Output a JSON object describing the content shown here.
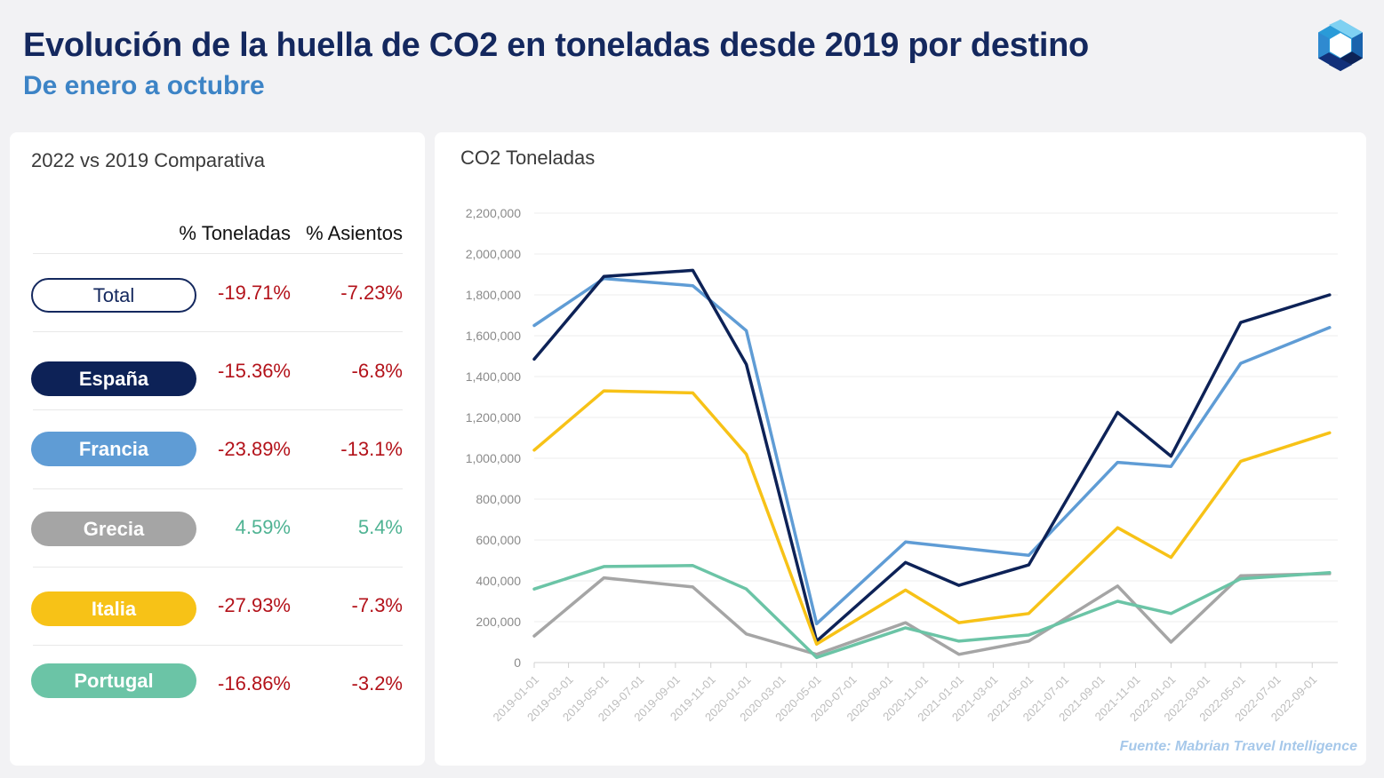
{
  "header": {
    "title": "Evolución de la huella de CO2 en toneladas desde 2019 por destino",
    "subtitle": "De enero a octubre",
    "logo_icon": "hexagon-logo-icon"
  },
  "comparison": {
    "title": "2022 vs 2019 Comparativa",
    "col_tons": "% Toneladas",
    "col_seats": "% Asientos",
    "rows": [
      {
        "label": "Total",
        "tons": "-19.71%",
        "seats": "-7.23%",
        "color": "#ffffff",
        "outline": true
      },
      {
        "label": "España",
        "tons": "-15.36%",
        "seats": "-6.8%",
        "color": "#0d2257"
      },
      {
        "label": "Francia",
        "tons": "-23.89%",
        "seats": "-13.1%",
        "color": "#5f9cd5"
      },
      {
        "label": "Grecia",
        "tons": "4.59%",
        "seats": "5.4%",
        "color": "#a5a5a5"
      },
      {
        "label": "Italia",
        "tons": "-27.93%",
        "seats": "-7.3%",
        "color": "#f7c217"
      },
      {
        "label": "Portugal",
        "tons": "-16.86%",
        "seats": "-3.2%",
        "color": "#6bc4a6"
      }
    ]
  },
  "chart_data": {
    "type": "line",
    "title": "CO2 Toneladas",
    "source": "Fuente: Mabrian Travel Intelligence",
    "ylim": [
      0,
      2200000
    ],
    "yticks": [
      0,
      200000,
      400000,
      600000,
      800000,
      1000000,
      1200000,
      1400000,
      1600000,
      1800000,
      2000000,
      2200000
    ],
    "ytick_labels": [
      "0",
      "200,000",
      "400,000",
      "600,000",
      "800,000",
      "1,000,000",
      "1,200,000",
      "1,400,000",
      "1,600,000",
      "1,800,000",
      "2,000,000",
      "2,200,000"
    ],
    "xtick_labels": [
      "2019-01-01",
      "2019-03-01",
      "2019-05-01",
      "2019-07-01",
      "2019-09-01",
      "2019-11-01",
      "2020-01-01",
      "2020-03-01",
      "2020-05-01",
      "2020-07-01",
      "2020-09-01",
      "2020-11-01",
      "2021-01-01",
      "2021-03-01",
      "2021-05-01",
      "2021-07-01",
      "2021-09-01",
      "2021-11-01",
      "2022-01-01",
      "2022-03-01",
      "2022-05-01",
      "2022-07-01",
      "2022-09-01"
    ],
    "xlim": [
      "2019-01-01",
      "2022-10-15"
    ],
    "grid": true,
    "series": [
      {
        "name": "Francia",
        "color": "#5f9cd5",
        "x": [
          "2019-01-01",
          "2019-05-01",
          "2019-10-01",
          "2020-01-01",
          "2020-05-01",
          "2020-10-01",
          "2021-05-01",
          "2021-10-01",
          "2022-01-01",
          "2022-05-01",
          "2022-10-01"
        ],
        "values": [
          1650000,
          1880000,
          1845000,
          1625000,
          190000,
          590000,
          525000,
          980000,
          960000,
          1465000,
          1640000
        ]
      },
      {
        "name": "España",
        "color": "#0d2257",
        "x": [
          "2019-01-01",
          "2019-05-01",
          "2019-10-01",
          "2020-01-01",
          "2020-05-01",
          "2020-10-01",
          "2021-01-01",
          "2021-05-01",
          "2021-10-01",
          "2022-01-01",
          "2022-05-01",
          "2022-10-01"
        ],
        "values": [
          1485000,
          1890000,
          1920000,
          1460000,
          105000,
          490000,
          378000,
          478000,
          1225000,
          1010000,
          1665000,
          1800000
        ]
      },
      {
        "name": "Italia",
        "color": "#f7c217",
        "x": [
          "2019-01-01",
          "2019-05-01",
          "2019-10-01",
          "2020-01-01",
          "2020-05-01",
          "2020-10-01",
          "2021-01-01",
          "2021-05-01",
          "2021-10-01",
          "2022-01-01",
          "2022-05-01",
          "2022-10-01"
        ],
        "values": [
          1040000,
          1330000,
          1320000,
          1020000,
          90000,
          355000,
          195000,
          240000,
          660000,
          515000,
          985000,
          1125000
        ]
      },
      {
        "name": "Grecia",
        "color": "#a5a5a5",
        "x": [
          "2019-01-01",
          "2019-05-01",
          "2019-10-01",
          "2020-01-01",
          "2020-05-01",
          "2020-10-01",
          "2021-01-01",
          "2021-05-01",
          "2021-10-01",
          "2022-01-01",
          "2022-05-01",
          "2022-10-01"
        ],
        "values": [
          130000,
          415000,
          370000,
          140000,
          40000,
          195000,
          40000,
          105000,
          375000,
          100000,
          425000,
          435000
        ]
      },
      {
        "name": "Portugal",
        "color": "#6bc4a6",
        "x": [
          "2019-01-01",
          "2019-05-01",
          "2019-10-01",
          "2020-01-01",
          "2020-05-01",
          "2020-10-01",
          "2021-01-01",
          "2021-05-01",
          "2021-10-01",
          "2022-01-01",
          "2022-05-01",
          "2022-10-01"
        ],
        "values": [
          360000,
          470000,
          475000,
          360000,
          25000,
          170000,
          105000,
          135000,
          300000,
          240000,
          410000,
          440000
        ]
      }
    ]
  }
}
